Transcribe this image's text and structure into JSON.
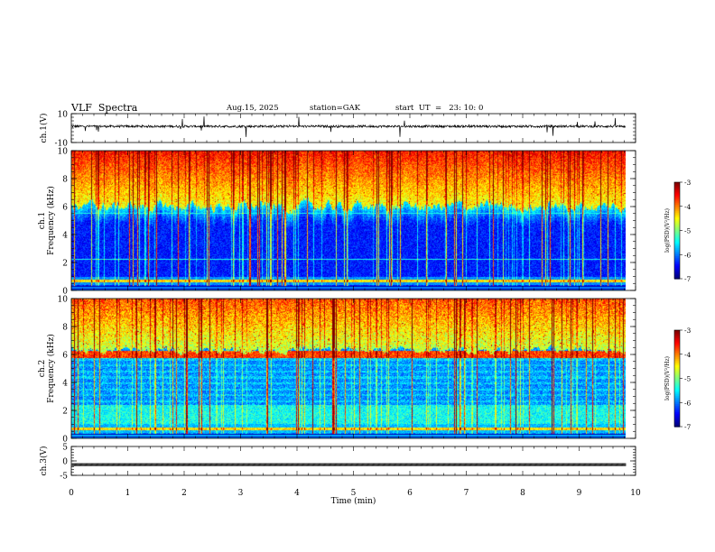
{
  "header": {
    "title": "VLF  Spectra",
    "date": "Aug.15, 2025",
    "station": "station=GAK",
    "start": "start  UT  =   23: 10: 0"
  },
  "chart_data": [
    {
      "type": "line",
      "panel": "ch1-waveform",
      "ylabel": "ch.1(V)",
      "ylim": [
        -10,
        10
      ],
      "yticks": [
        "10",
        "-10"
      ],
      "baseline": 1.2,
      "color": "#000000"
    },
    {
      "type": "heatmap",
      "panel": "ch1-spectrogram",
      "ylabel": "ch.1\nFrequency (kHz)",
      "ylim": [
        0,
        10
      ],
      "yticks": [
        "0",
        "2",
        "4",
        "6",
        "8",
        "10"
      ],
      "colorbar": {
        "label": "log(PSD)(V²/Hz)",
        "range": [
          -7,
          -3
        ],
        "ticks": [
          "-3",
          "-4",
          "-5",
          "-6",
          "-7"
        ]
      },
      "description_bands": [
        {
          "from_khz": 6.0,
          "to_khz": 10.0,
          "level": "high"
        },
        {
          "from_khz": 0.0,
          "to_khz": 6.0,
          "level": "low"
        }
      ]
    },
    {
      "type": "heatmap",
      "panel": "ch2-spectrogram",
      "ylabel": "ch.2\nFrequency (kHz)",
      "ylim": [
        0,
        10
      ],
      "yticks": [
        "0",
        "2",
        "4",
        "6",
        "8",
        "10"
      ],
      "colorbar": {
        "label": "log(PSD)(V²/Hz)",
        "range": [
          -7,
          -3
        ],
        "ticks": [
          "-3",
          "-4",
          "-5",
          "-6",
          "-7"
        ]
      },
      "description_bands": [
        {
          "from_khz": 6.3,
          "to_khz": 10.0,
          "level": "high"
        },
        {
          "from_khz": 0.0,
          "to_khz": 6.3,
          "level": "mid"
        }
      ]
    },
    {
      "type": "line",
      "panel": "ch3-waveform",
      "ylabel": "ch.3(V)",
      "ylim": [
        -5,
        5
      ],
      "yticks": [
        "5",
        "0",
        "-5"
      ],
      "baseline": -1.3,
      "color": "#000000"
    }
  ],
  "x_axis": {
    "label": "Time  (min)",
    "range": [
      0,
      10
    ],
    "data_end": 9.83,
    "ticks": [
      "0",
      "1",
      "2",
      "3",
      "4",
      "5",
      "6",
      "7",
      "8",
      "9",
      "10"
    ]
  }
}
